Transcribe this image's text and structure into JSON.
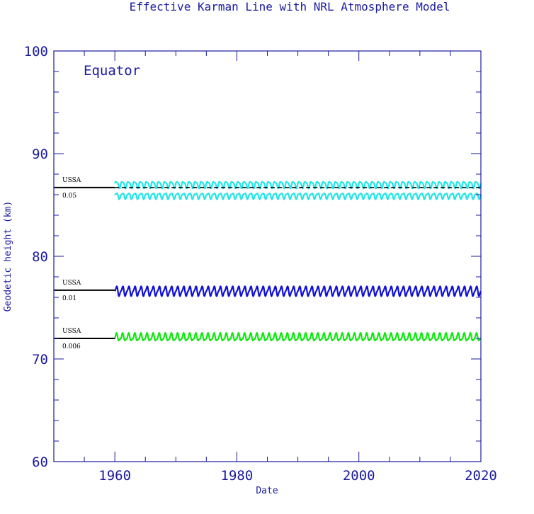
{
  "chart_data": {
    "type": "line",
    "title": "Effective Karman Line with NRL Atmosphere Model",
    "annotation": "Equator",
    "xlabel": "Date",
    "ylabel": "Geodetic height (km)",
    "xlim": [
      1950,
      2020
    ],
    "ylim": [
      60,
      100
    ],
    "xticks": [
      1960,
      1980,
      2000,
      2020
    ],
    "yticks": [
      60,
      70,
      80,
      90,
      100
    ],
    "grid": false,
    "reference_lines": [
      {
        "label_top": "USSA",
        "label_bottom": "0.05",
        "y": 86.7,
        "x_start": 1950,
        "x_end": 1960,
        "dashed_end": 2020
      },
      {
        "label_top": "USSA",
        "label_bottom": "0.01",
        "y": 76.7,
        "x_start": 1950,
        "x_end": 1960
      },
      {
        "label_top": "USSA",
        "label_bottom": "0.006",
        "y": 72.0,
        "x_start": 1950,
        "x_end": 1960
      }
    ],
    "series": [
      {
        "color": "#22e5e5",
        "x_range": [
          1960,
          2020
        ],
        "y_mean": 87.0,
        "amplitude": 0.4,
        "period_years": 1
      },
      {
        "color": "#22e5e5",
        "x_range": [
          1960,
          2020
        ],
        "y_mean": 85.9,
        "amplitude": 0.35,
        "period_years": 1
      },
      {
        "color": "#1010d8",
        "x_range": [
          1960,
          2020
        ],
        "y_mean": 76.6,
        "amplitude": 0.55,
        "period_years": 1
      },
      {
        "color": "#10e810",
        "x_range": [
          1960,
          2020
        ],
        "y_mean": 72.1,
        "amplitude": 0.45,
        "period_years": 1
      }
    ]
  }
}
